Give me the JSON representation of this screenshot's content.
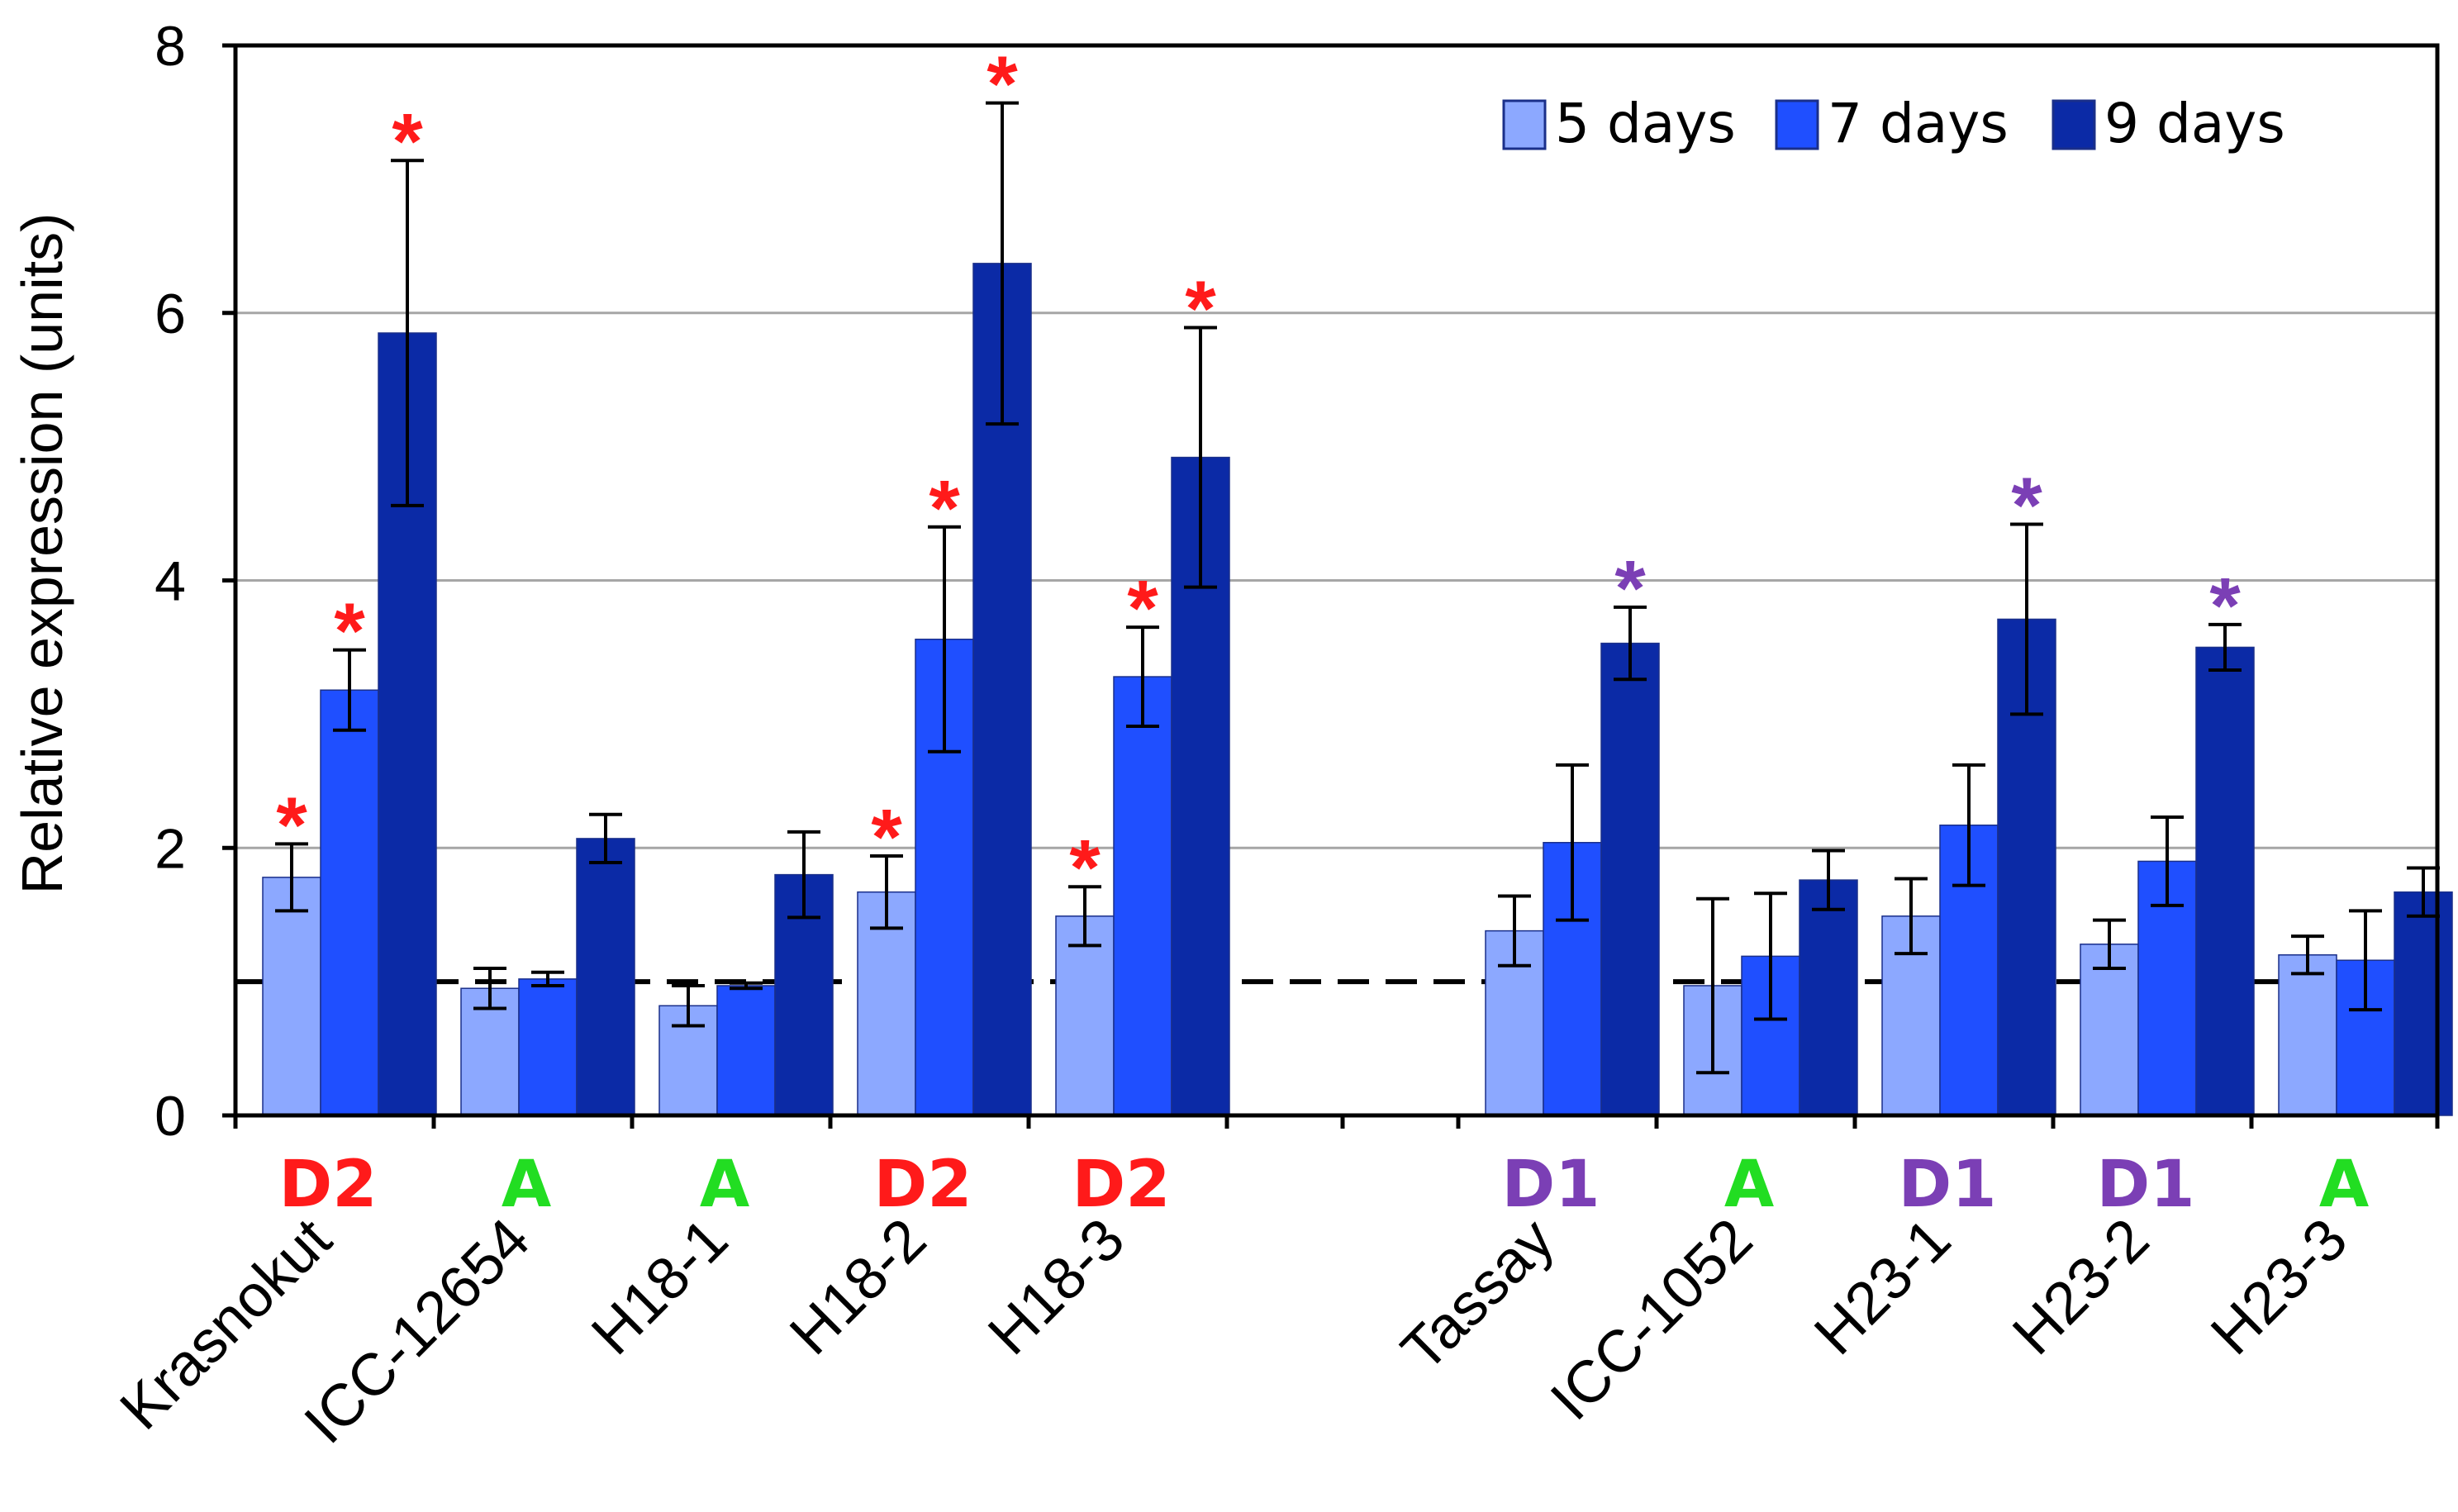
{
  "chart_data": {
    "type": "bar",
    "title": "",
    "xlabel": "",
    "ylabel": "Relative expression (units)",
    "ylim": [
      0,
      8
    ],
    "yticks": [
      "0",
      "2",
      "4",
      "6",
      "8"
    ],
    "grid": true,
    "legend_position": "top-right",
    "reference_line": 1,
    "categories": [
      "Krasnokut",
      "ICC-12654",
      "H18-1",
      "H18-2",
      "H18-3",
      "Tassay",
      "ICC-1052",
      "H23-1",
      "H23-2",
      "H23-3"
    ],
    "group_labels": [
      "D2",
      "A",
      "A",
      "D2",
      "D2",
      "D1",
      "A",
      "D1",
      "D1",
      "A"
    ],
    "group_label_colors": {
      "D2": "#ff1a1a",
      "A": "#22dd22",
      "D1": "#7b3fb5"
    },
    "series": [
      {
        "name": "5 days",
        "color": "#8ca8ff",
        "values": [
          1.78,
          0.95,
          0.82,
          1.67,
          1.49,
          1.38,
          0.97,
          1.49,
          1.28,
          1.2
        ],
        "errors": [
          0.25,
          0.15,
          0.15,
          0.27,
          0.22,
          0.26,
          0.65,
          0.28,
          0.18,
          0.14
        ],
        "significant": [
          true,
          false,
          false,
          true,
          true,
          false,
          false,
          false,
          false,
          false
        ]
      },
      {
        "name": "7 days",
        "color": "#1f4fff",
        "values": [
          3.18,
          1.02,
          0.97,
          3.56,
          3.28,
          2.04,
          1.19,
          2.17,
          1.9,
          1.16
        ],
        "errors": [
          0.3,
          0.05,
          0.02,
          0.84,
          0.37,
          0.58,
          0.47,
          0.45,
          0.33,
          0.37
        ],
        "significant": [
          true,
          false,
          false,
          true,
          true,
          false,
          false,
          false,
          false,
          false
        ]
      },
      {
        "name": "9 days",
        "color": "#0b2aa6",
        "values": [
          5.85,
          2.07,
          1.8,
          6.37,
          4.92,
          3.53,
          1.76,
          3.71,
          3.5,
          1.67
        ],
        "errors": [
          1.29,
          0.18,
          0.32,
          1.2,
          0.97,
          0.27,
          0.22,
          0.71,
          0.17,
          0.18
        ],
        "significant": [
          true,
          false,
          false,
          true,
          true,
          true,
          false,
          true,
          true,
          false
        ]
      }
    ],
    "significance_marker": "*"
  },
  "colors": {
    "grid": "#a6a6a6",
    "axis": "#000000",
    "star_d2": "#ff1a1a",
    "star_d1": "#7b3fb5"
  }
}
